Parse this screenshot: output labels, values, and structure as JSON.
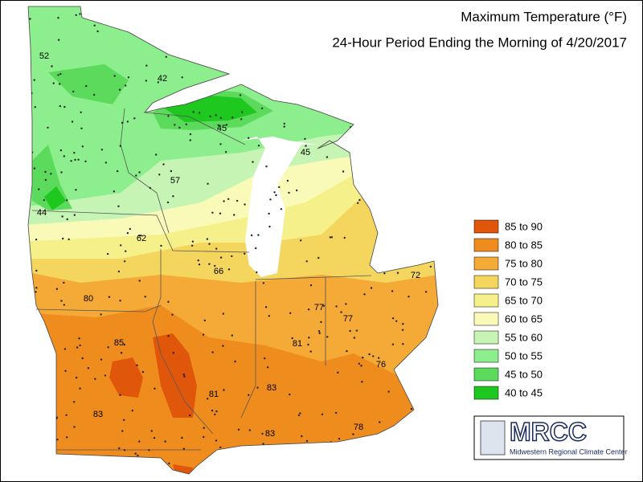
{
  "title": "Maximum Temperature (°F)",
  "subtitle": "24-Hour Period Ending the Morning of 4/20/2017",
  "legend": [
    {
      "label": "85 to 90",
      "color": "#e0560a"
    },
    {
      "label": "80 to 85",
      "color": "#ef8c1e"
    },
    {
      "label": "75 to 80",
      "color": "#f5a936"
    },
    {
      "label": "70 to 75",
      "color": "#f4d55e"
    },
    {
      "label": "65 to 70",
      "color": "#f6f08a"
    },
    {
      "label": "60 to 65",
      "color": "#fafab8"
    },
    {
      "label": "55 to 60",
      "color": "#c6f4b4"
    },
    {
      "label": "50 to 55",
      "color": "#8cee8c"
    },
    {
      "label": "45 to 50",
      "color": "#5cda5c"
    },
    {
      "label": "40 to 45",
      "color": "#1ec81e"
    }
  ],
  "stations": [
    52,
    42,
    45,
    45,
    57,
    44,
    62,
    66,
    80,
    72,
    77,
    77,
    85,
    81,
    76,
    83,
    81,
    83,
    78,
    83
  ],
  "logo": {
    "name": "MRCC",
    "full_name": "Midwestern Regional Climate Center"
  }
}
